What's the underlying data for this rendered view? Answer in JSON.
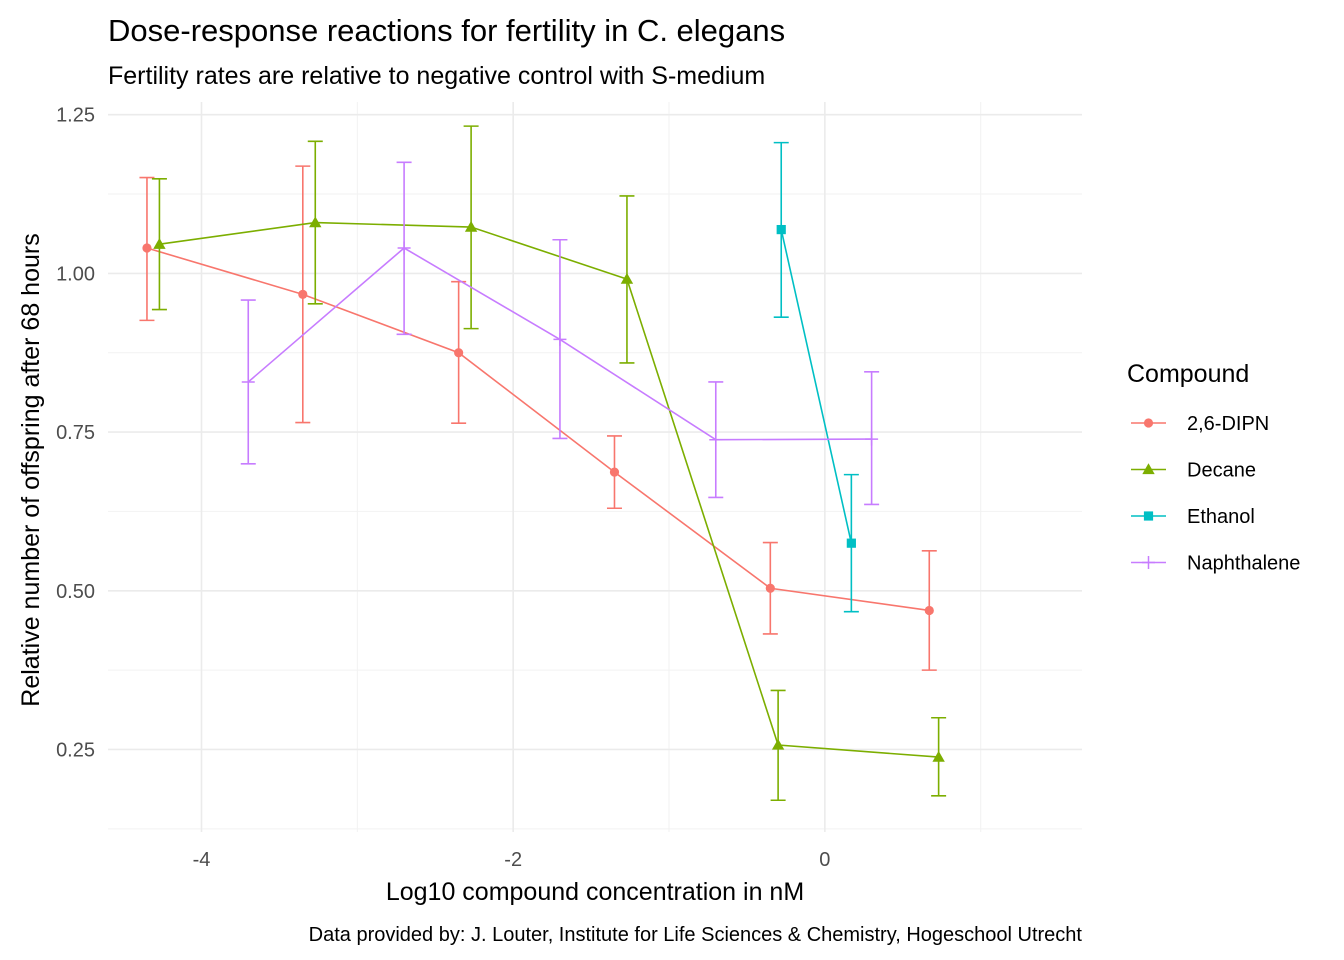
{
  "chart_data": {
    "type": "line",
    "title": "Dose-response reactions for fertility in C. elegans",
    "subtitle": "Fertility rates are relative to negative control with S-medium",
    "caption": "Data provided by: J. Louter, Institute for Life Sciences & Chemistry, Hogeschool Utrecht",
    "xlabel": "Log10 compound concentration in nM",
    "ylabel": "Relative number of offspring after 68 hours",
    "xlim": [
      -4.6,
      1.65
    ],
    "ylim": [
      0.12,
      1.27
    ],
    "x_ticks": [
      -4,
      -2,
      0
    ],
    "x_tick_labels": [
      "-4",
      "-2",
      "0"
    ],
    "y_ticks": [
      0.25,
      0.5,
      0.75,
      1.0,
      1.25
    ],
    "y_tick_labels": [
      "0.25",
      "0.50",
      "0.75",
      "1.00",
      "1.25"
    ],
    "grid": true,
    "legend": {
      "title": "Compound",
      "position": "right"
    },
    "series": [
      {
        "name": "2,6-DIPN",
        "color": "#F8766D",
        "marker": "circle",
        "points": [
          {
            "x": -4.35,
            "y": 1.04,
            "ymin": 0.926,
            "ymax": 1.151
          },
          {
            "x": -3.35,
            "y": 0.967,
            "ymin": 0.765,
            "ymax": 1.169
          },
          {
            "x": -2.35,
            "y": 0.875,
            "ymin": 0.764,
            "ymax": 0.987
          },
          {
            "x": -1.35,
            "y": 0.687,
            "ymin": 0.63,
            "ymax": 0.744
          },
          {
            "x": -0.35,
            "y": 0.504,
            "ymin": 0.432,
            "ymax": 0.576
          },
          {
            "x": 0.67,
            "y": 0.469,
            "ymin": 0.375,
            "ymax": 0.563
          }
        ]
      },
      {
        "name": "Decane",
        "color": "#7CAE00",
        "marker": "triangle",
        "points": [
          {
            "x": -4.27,
            "y": 1.046,
            "ymin": 0.943,
            "ymax": 1.149
          },
          {
            "x": -3.27,
            "y": 1.08,
            "ymin": 0.952,
            "ymax": 1.208
          },
          {
            "x": -2.27,
            "y": 1.073,
            "ymin": 0.913,
            "ymax": 1.232
          },
          {
            "x": -1.27,
            "y": 0.991,
            "ymin": 0.859,
            "ymax": 1.122
          },
          {
            "x": -0.3,
            "y": 0.257,
            "ymin": 0.17,
            "ymax": 0.343
          },
          {
            "x": 0.73,
            "y": 0.238,
            "ymin": 0.177,
            "ymax": 0.3
          }
        ]
      },
      {
        "name": "Ethanol",
        "color": "#00BFC4",
        "marker": "square",
        "points": [
          {
            "x": -0.28,
            "y": 1.069,
            "ymin": 0.931,
            "ymax": 1.206
          },
          {
            "x": 0.17,
            "y": 0.575,
            "ymin": 0.467,
            "ymax": 0.683
          }
        ]
      },
      {
        "name": "Naphthalene",
        "color": "#C77CFF",
        "marker": "plus",
        "points": [
          {
            "x": -3.7,
            "y": 0.829,
            "ymin": 0.7,
            "ymax": 0.958
          },
          {
            "x": -2.7,
            "y": 1.04,
            "ymin": 0.904,
            "ymax": 1.175
          },
          {
            "x": -1.7,
            "y": 0.896,
            "ymin": 0.74,
            "ymax": 1.053
          },
          {
            "x": -0.7,
            "y": 0.738,
            "ymin": 0.647,
            "ymax": 0.829
          },
          {
            "x": 0.3,
            "y": 0.739,
            "ymin": 0.636,
            "ymax": 0.845
          }
        ]
      }
    ]
  }
}
